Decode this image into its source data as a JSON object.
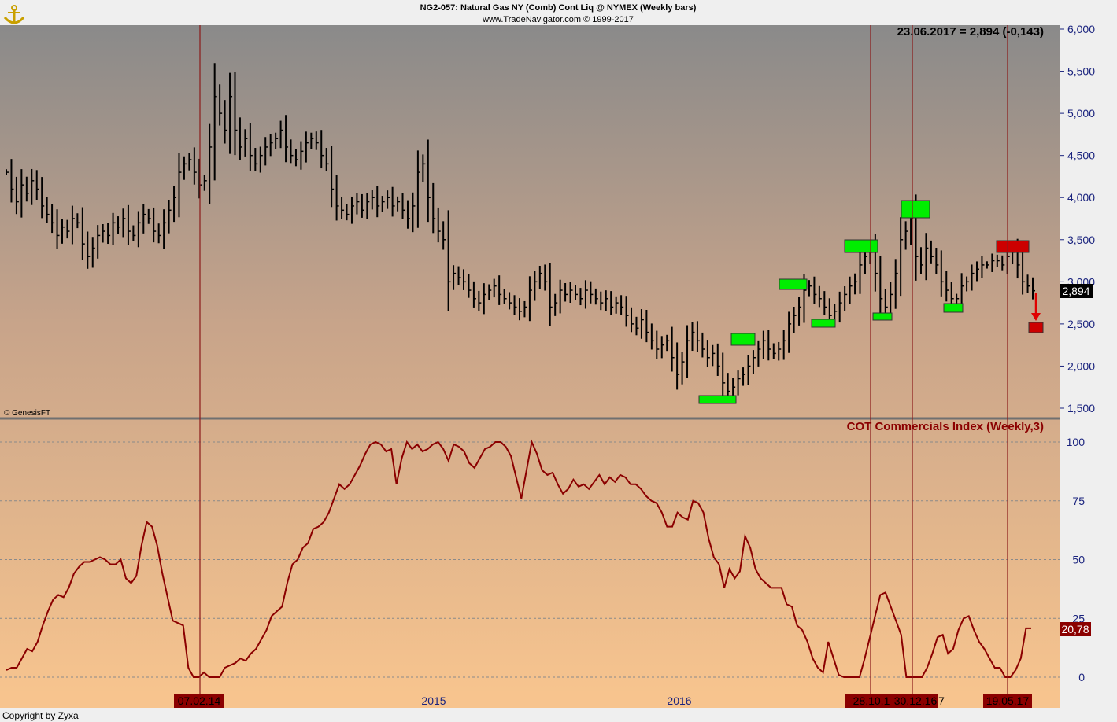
{
  "header": {
    "title": "NG2-057:  Natural Gas NY (Comb) Cont Liq @ NYMEX  (Weekly bars)",
    "subtitle": "www.TradeNavigator.com © 1999-2017",
    "readout": "23.06.2017 = 2,894 (-0,143)",
    "watermark": "© GenesisFT",
    "copyright": "Copyright by Zyxa",
    "logo_icon": "anchor-logo-icon"
  },
  "colors": {
    "panel_top": "#8a8a8a",
    "panel_bottom": "#f5c28f",
    "price_bar": "#000000",
    "cot_line": "#8b0000",
    "marker_green": "#00ee00",
    "marker_red": "#cc0000",
    "vline": "#8b1a1a",
    "axis_text": "#1a237e"
  },
  "price_axis": {
    "ticks": [
      "6,000",
      "5,500",
      "5,000",
      "4,500",
      "4,000",
      "3,500",
      "3,000",
      "2,500",
      "2,000",
      "1,500"
    ],
    "last_label": "2,894"
  },
  "cot_axis": {
    "ticks": [
      "100",
      "75",
      "50",
      "25",
      "0"
    ],
    "last_label": "20,78"
  },
  "x_axis": {
    "year_labels": [
      "2015",
      "2016"
    ],
    "date_tags": [
      "07.02.14",
      "28.10.1",
      "30.12.16",
      "7",
      "19.05.17"
    ]
  },
  "chart_data": [
    {
      "type": "line",
      "subtype": "ohlc-bars",
      "title": "NG2-057:  Natural Gas NY (Comb) Cont Liq @ NYMEX  (Weekly bars)",
      "ylim": [
        1.5,
        6.0
      ],
      "y_ticks": [
        6.0,
        5.5,
        5.0,
        4.5,
        4.0,
        3.5,
        3.0,
        2.5,
        2.0,
        1.5
      ],
      "last_value": 2.894,
      "change": -0.143,
      "x_start": "2013-08",
      "x_end": "2017-06-23",
      "series": [
        {
          "values": [
            4.3,
            4.1,
            3.95,
            4.15,
            4.05,
            4.2,
            4.1,
            3.9,
            3.8,
            3.7,
            3.55,
            3.65,
            3.6,
            3.75,
            3.7,
            3.45,
            3.3,
            3.4,
            3.55,
            3.6,
            3.55,
            3.7,
            3.65,
            3.75,
            3.6,
            3.55,
            3.7,
            3.8,
            3.75,
            3.6,
            3.55,
            3.7,
            3.85,
            4.0,
            4.3,
            4.4,
            4.45,
            4.3,
            4.15,
            4.2,
            4.6,
            5.2,
            5.0,
            4.8,
            5.2,
            4.8,
            4.6,
            4.7,
            4.5,
            4.4,
            4.5,
            4.6,
            4.65,
            4.7,
            4.8,
            4.6,
            4.5,
            4.45,
            4.55,
            4.65,
            4.7,
            4.65,
            4.5,
            4.4,
            4.1,
            3.9,
            3.85,
            3.8,
            3.9,
            3.95,
            3.85,
            3.95,
            4.0,
            3.9,
            3.95,
            4.0,
            3.9,
            3.95,
            3.85,
            3.75,
            3.9,
            4.3,
            4.4,
            4.0,
            3.75,
            3.6,
            3.5,
            3.0,
            3.1,
            3.05,
            3.0,
            2.9,
            2.8,
            2.75,
            2.85,
            2.9,
            2.95,
            2.85,
            2.8,
            2.75,
            2.7,
            2.65,
            2.7,
            2.9,
            3.0,
            3.1,
            3.0,
            2.7,
            2.75,
            2.9,
            2.85,
            2.9,
            2.85,
            2.8,
            2.9,
            2.85,
            2.8,
            2.75,
            2.8,
            2.7,
            2.75,
            2.7,
            2.6,
            2.5,
            2.45,
            2.55,
            2.4,
            2.3,
            2.2,
            2.25,
            2.3,
            2.1,
            1.9,
            2.05,
            2.3,
            2.4,
            2.3,
            2.2,
            2.1,
            2.15,
            2.0,
            1.8,
            1.7,
            1.75,
            1.85,
            1.9,
            2.0,
            2.1,
            2.2,
            2.3,
            2.2,
            2.15,
            2.2,
            2.3,
            2.5,
            2.6,
            2.7,
            2.9,
            2.95,
            2.85,
            2.8,
            2.7,
            2.6,
            2.65,
            2.75,
            2.85,
            2.95,
            3.0,
            3.2,
            3.3,
            3.35,
            3.1,
            2.8,
            2.7,
            2.85,
            3.1,
            3.5,
            3.6,
            3.75,
            3.3,
            3.2,
            3.4,
            3.3,
            3.2,
            3.0,
            2.9,
            2.8,
            2.8,
            2.95,
            3.0,
            3.1,
            3.15,
            3.2,
            3.2,
            3.25,
            3.25,
            3.2,
            3.3,
            3.35,
            3.2,
            3.0,
            2.95,
            2.894
          ]
        }
      ],
      "markers": [
        {
          "date": "2016-03",
          "value": 1.6,
          "color": "green",
          "kind": "buy"
        },
        {
          "date": "2016-05",
          "value": 2.3,
          "color": "green",
          "kind": "buy"
        },
        {
          "date": "2016-07",
          "value": 2.95,
          "color": "green",
          "kind": "buy"
        },
        {
          "date": "2016-08",
          "value": 2.5,
          "color": "green",
          "kind": "buy"
        },
        {
          "date": "2016-09",
          "value": 3.45,
          "color": "green",
          "kind": "buy"
        },
        {
          "date": "2016-10",
          "value": 2.6,
          "color": "green",
          "kind": "buy"
        },
        {
          "date": "2016-12",
          "value": 3.9,
          "color": "green",
          "kind": "buy"
        },
        {
          "date": "2017-02",
          "value": 2.7,
          "color": "green",
          "kind": "buy"
        },
        {
          "date": "2017-05",
          "value": 3.45,
          "color": "red",
          "kind": "sell"
        },
        {
          "date": "2017-06",
          "value": 2.45,
          "color": "red",
          "kind": "target"
        }
      ],
      "vertical_lines": [
        "07.02.14",
        "28.10.1",
        "30.12.16",
        "19.05.17"
      ]
    },
    {
      "type": "line",
      "title": "COT Commercials Index (Weekly,3)",
      "ylim": [
        -5,
        105
      ],
      "y_ticks": [
        100,
        75,
        50,
        25,
        0
      ],
      "grid": true,
      "last_value": 20.78,
      "series": [
        {
          "name": "COT Commercials Index (Weekly,3)",
          "values": [
            3,
            4,
            4,
            8,
            12,
            11,
            15,
            22,
            28,
            33,
            35,
            34,
            38,
            44,
            47,
            49,
            49,
            50,
            51,
            50,
            48,
            48,
            50,
            42,
            40,
            43,
            56,
            66,
            64,
            56,
            44,
            34,
            24,
            23,
            22,
            4,
            0,
            0,
            2,
            0,
            0,
            0,
            4,
            5,
            6,
            8,
            7,
            10,
            12,
            16,
            20,
            26,
            28,
            30,
            40,
            48,
            50,
            55,
            57,
            63,
            64,
            66,
            70,
            76,
            82,
            80,
            82,
            86,
            90,
            95,
            99,
            100,
            99,
            96,
            97,
            82,
            93,
            100,
            97,
            99,
            96,
            97,
            99,
            100,
            97,
            92,
            99,
            98,
            96,
            91,
            89,
            93,
            97,
            98,
            100,
            100,
            98,
            94,
            85,
            76,
            88,
            100,
            95,
            88,
            86,
            87,
            82,
            78,
            80,
            84,
            81,
            82,
            80,
            83,
            86,
            82,
            85,
            83,
            86,
            85,
            82,
            82,
            80,
            77,
            75,
            74,
            70,
            64,
            64,
            70,
            68,
            67,
            75,
            74,
            70,
            59,
            51,
            48,
            38,
            46,
            42,
            45,
            60,
            55,
            46,
            42,
            40,
            38,
            38,
            38,
            31,
            30,
            22,
            20,
            15,
            8,
            4,
            2,
            15,
            8,
            1,
            0,
            0,
            0,
            0,
            8,
            17,
            26,
            35,
            36,
            30,
            24,
            18,
            0,
            0,
            0,
            0,
            4,
            10,
            17,
            18,
            10,
            12,
            20,
            25,
            26,
            20,
            15,
            12,
            8,
            4,
            4,
            0,
            0,
            3,
            8,
            20.78,
            20.78
          ]
        }
      ],
      "vertical_lines": [
        "07.02.14",
        "28.10.1",
        "30.12.16",
        "19.05.17"
      ]
    }
  ]
}
